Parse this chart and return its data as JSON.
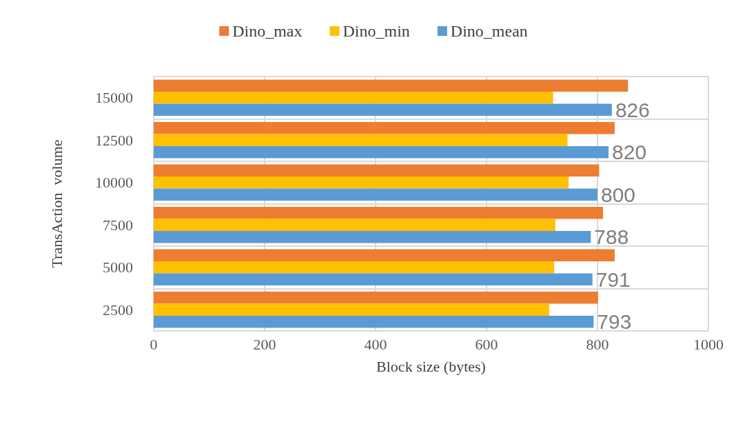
{
  "chart_data": {
    "type": "bar",
    "orientation": "horizontal",
    "xlabel": "Block size (bytes)",
    "ylabel": "TransAction  volume",
    "categories": [
      "15000",
      "12500",
      "10000",
      "7500",
      "5000",
      "2500"
    ],
    "series": [
      {
        "name": "Dino_max",
        "color": "#ed7d31",
        "values": [
          855,
          831,
          803,
          810,
          831,
          801
        ]
      },
      {
        "name": "Dino_min",
        "color": "#ffc000",
        "values": [
          720,
          746,
          748,
          724,
          722,
          713
        ]
      },
      {
        "name": "Dino_mean",
        "color": "#5b9bd5",
        "values": [
          826,
          820,
          800,
          788,
          791,
          793
        ],
        "value_labels": [
          "826",
          "820",
          "800",
          "788",
          "791",
          "793"
        ]
      }
    ],
    "xlim": [
      0,
      1000
    ],
    "xticks": [
      0,
      200,
      400,
      600,
      800,
      1000
    ],
    "grid": "x",
    "legend": "top"
  }
}
